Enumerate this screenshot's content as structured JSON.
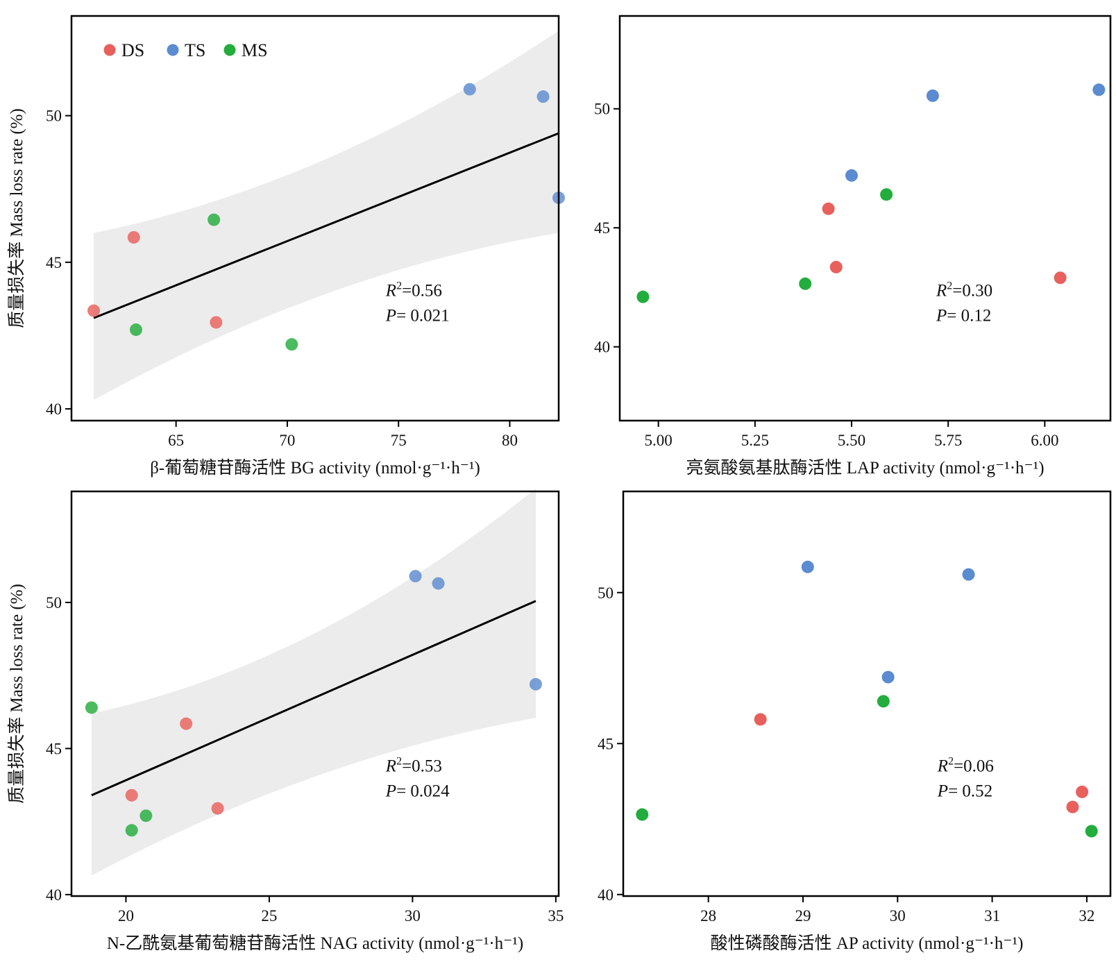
{
  "colors": {
    "DS": "#e8605c",
    "TS": "#5b8bd0",
    "MS": "#22ad3c",
    "band": "#ececec",
    "line": "#000000"
  },
  "legend": [
    {
      "group": "DS",
      "label": "DS"
    },
    {
      "group": "TS",
      "label": "TS"
    },
    {
      "group": "MS",
      "label": "MS"
    }
  ],
  "chart_data": [
    {
      "type": "scatter",
      "xlabel": "β-葡萄糖苷酶活性 BG activity (nmol·g⁻¹·h⁻¹)",
      "ylabel": "质量损失率 Mass loss rate (%)",
      "xlim": [
        60.3,
        82.2
      ],
      "ylim": [
        39.6,
        53.4
      ],
      "xticks": [
        65,
        70,
        75,
        80
      ],
      "yticks": [
        40,
        45,
        50
      ],
      "r2_label": "0.56",
      "p_label": "0.021",
      "fit": {
        "x": [
          61.3,
          82.2
        ],
        "y": [
          43.1,
          49.4
        ]
      },
      "band": {
        "x": [
          61.3,
          71.75,
          82.2
        ],
        "lower": [
          40.3,
          44.7,
          46.0
        ],
        "upper": [
          46.0,
          47.6,
          52.9
        ]
      },
      "points": [
        {
          "x": 61.3,
          "y": 43.35,
          "group": "DS"
        },
        {
          "x": 63.1,
          "y": 45.85,
          "group": "DS"
        },
        {
          "x": 66.8,
          "y": 42.95,
          "group": "DS"
        },
        {
          "x": 63.2,
          "y": 42.7,
          "group": "MS"
        },
        {
          "x": 66.7,
          "y": 46.45,
          "group": "MS"
        },
        {
          "x": 70.2,
          "y": 42.2,
          "group": "MS"
        },
        {
          "x": 78.2,
          "y": 50.9,
          "group": "TS"
        },
        {
          "x": 81.5,
          "y": 50.65,
          "group": "TS"
        },
        {
          "x": 82.2,
          "y": 47.2,
          "group": "TS"
        }
      ]
    },
    {
      "type": "scatter",
      "xlabel": "亮氨酸氨基肽酶活性 LAP activity (nmol·g⁻¹·h⁻¹)",
      "ylabel": "",
      "xlim": [
        4.9,
        6.17
      ],
      "ylim": [
        36.9,
        53.9
      ],
      "xticks": [
        "5.00",
        "5.25",
        "5.50",
        "5.75",
        "6.00"
      ],
      "yticks": [
        40,
        45,
        50
      ],
      "r2_label": "0.30",
      "p_label": "0.12",
      "points": [
        {
          "x": 5.44,
          "y": 45.8,
          "group": "DS"
        },
        {
          "x": 5.46,
          "y": 43.35,
          "group": "DS"
        },
        {
          "x": 6.04,
          "y": 42.9,
          "group": "DS"
        },
        {
          "x": 4.96,
          "y": 42.1,
          "group": "MS"
        },
        {
          "x": 5.38,
          "y": 42.65,
          "group": "MS"
        },
        {
          "x": 5.59,
          "y": 46.4,
          "group": "MS"
        },
        {
          "x": 5.5,
          "y": 47.2,
          "group": "TS"
        },
        {
          "x": 5.71,
          "y": 50.55,
          "group": "TS"
        },
        {
          "x": 6.14,
          "y": 50.8,
          "group": "TS"
        }
      ]
    },
    {
      "type": "scatter",
      "xlabel": "N-乙酰氨基葡萄糖苷酶活性 NAG activity (nmol·g⁻¹·h⁻¹)",
      "ylabel": "质量损失率 Mass loss rate (%)",
      "xlim": [
        18.1,
        35.1
      ],
      "ylim": [
        39.95,
        53.8
      ],
      "xticks": [
        20,
        25,
        30,
        35
      ],
      "yticks": [
        40,
        45,
        50
      ],
      "r2_label": "0.53",
      "p_label": "0.024",
      "fit": {
        "x": [
          18.8,
          34.3
        ],
        "y": [
          43.4,
          50.05
        ]
      },
      "band": {
        "x": [
          18.8,
          26.55,
          34.3
        ],
        "lower": [
          40.65,
          44.7,
          46.05
        ],
        "upper": [
          46.2,
          47.8,
          53.9
        ]
      },
      "points": [
        {
          "x": 20.2,
          "y": 43.4,
          "group": "DS"
        },
        {
          "x": 22.1,
          "y": 45.85,
          "group": "DS"
        },
        {
          "x": 23.2,
          "y": 42.95,
          "group": "DS"
        },
        {
          "x": 18.8,
          "y": 46.4,
          "group": "MS"
        },
        {
          "x": 20.2,
          "y": 42.2,
          "group": "MS"
        },
        {
          "x": 20.7,
          "y": 42.7,
          "group": "MS"
        },
        {
          "x": 30.1,
          "y": 50.9,
          "group": "TS"
        },
        {
          "x": 30.9,
          "y": 50.65,
          "group": "TS"
        },
        {
          "x": 34.3,
          "y": 47.2,
          "group": "TS"
        }
      ]
    },
    {
      "type": "scatter",
      "xlabel": "酸性磷酸酶活性 AP activity (nmol·g⁻¹·h⁻¹)",
      "ylabel": "",
      "xlim": [
        27.1,
        32.25
      ],
      "ylim": [
        39.95,
        53.35
      ],
      "xticks": [
        28,
        29,
        30,
        31,
        32
      ],
      "yticks": [
        40,
        45,
        50
      ],
      "r2_label": "0.06",
      "p_label": "0.52",
      "points": [
        {
          "x": 28.55,
          "y": 45.8,
          "group": "DS"
        },
        {
          "x": 31.85,
          "y": 42.9,
          "group": "DS"
        },
        {
          "x": 31.95,
          "y": 43.4,
          "group": "DS"
        },
        {
          "x": 27.3,
          "y": 42.65,
          "group": "MS"
        },
        {
          "x": 29.85,
          "y": 46.4,
          "group": "MS"
        },
        {
          "x": 32.05,
          "y": 42.1,
          "group": "MS"
        },
        {
          "x": 29.05,
          "y": 50.85,
          "group": "TS"
        },
        {
          "x": 29.9,
          "y": 47.2,
          "group": "TS"
        },
        {
          "x": 30.75,
          "y": 50.6,
          "group": "TS"
        }
      ]
    }
  ]
}
